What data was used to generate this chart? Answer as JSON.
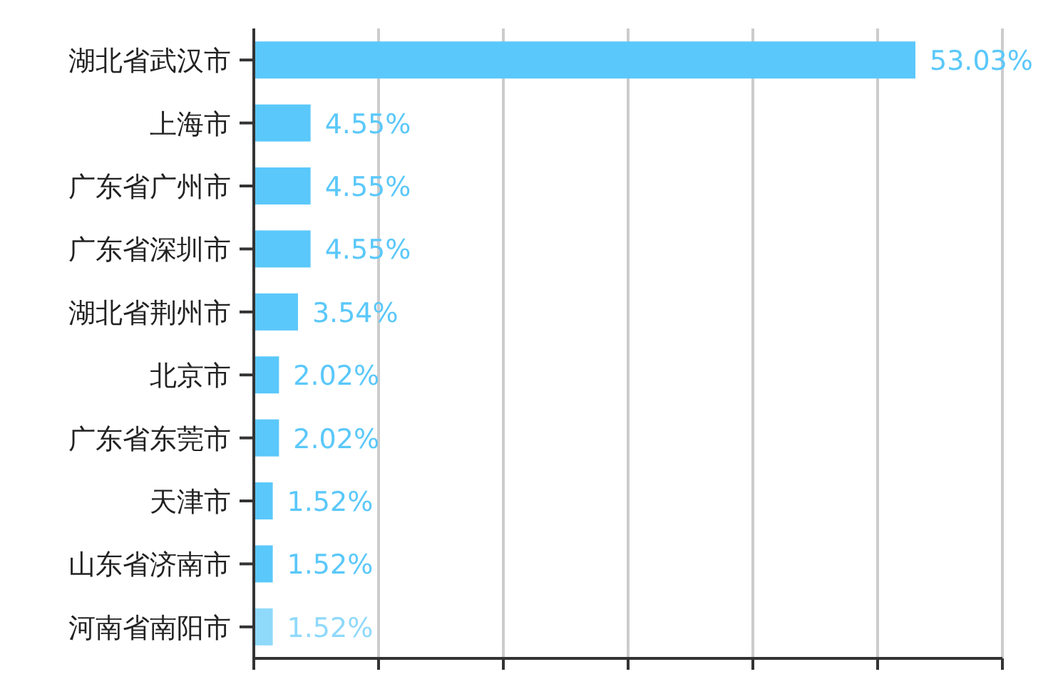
{
  "chart_data": {
    "type": "bar",
    "orientation": "horizontal",
    "categories": [
      "湖北省武汉市",
      "上海市",
      "广东省广州市",
      "广东省深圳市",
      "湖北省荆州市",
      "北京市",
      "广东省东莞市",
      "天津市",
      "山东省济南市",
      "河南省南阳市"
    ],
    "values": [
      53.03,
      4.55,
      4.55,
      4.55,
      3.54,
      2.02,
      2.02,
      1.52,
      1.52,
      1.52
    ],
    "value_labels": [
      "53.03%",
      "4.55%",
      "4.55%",
      "4.55%",
      "3.54%",
      "2.02%",
      "2.02%",
      "1.52%",
      "1.52%",
      "1.52%"
    ],
    "colors": [
      "#5ac8fa",
      "#5ac8fa",
      "#5ac8fa",
      "#5ac8fa",
      "#5ac8fa",
      "#5ac8fa",
      "#5ac8fa",
      "#5ac8fa",
      "#5ac8fa",
      "#8fd9fb"
    ],
    "xlim": [
      0,
      60
    ],
    "xticks": [
      {
        "value": 0,
        "label": null
      },
      {
        "value": 10,
        "label": null
      },
      {
        "value": 20,
        "label": null
      },
      {
        "value": 30,
        "label": null
      },
      {
        "value": 40,
        "label": null
      },
      {
        "value": 50,
        "label": null
      },
      {
        "value": 60,
        "label": null
      }
    ],
    "grid": "x"
  }
}
